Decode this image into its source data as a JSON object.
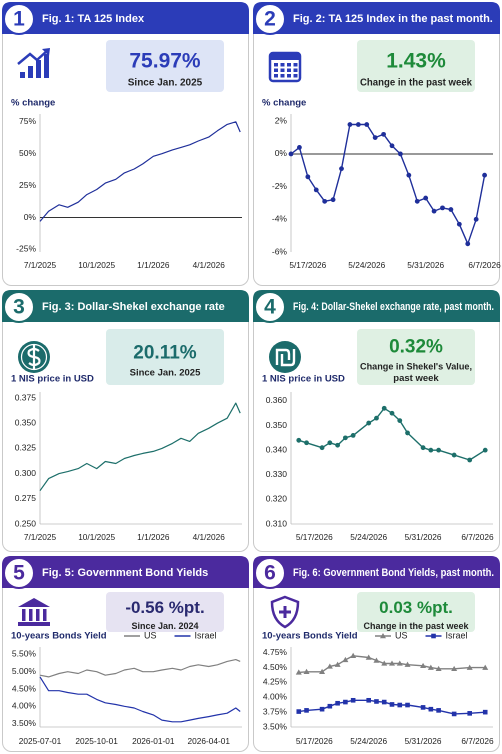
{
  "chart_data": [
    {
      "type": "line",
      "badge": "1",
      "title": "Fig. 1: TA 125 Index",
      "header_color": "#2b3cb8",
      "kpi": "75.97%",
      "kpi_caption": [
        "Since Jan. 2025"
      ],
      "kpi_color": "#2b3cb8",
      "kpi_background": "#dde4f6",
      "ylabel": "% change",
      "zero_line": true,
      "color": "#1f2f9a",
      "x": [
        "7/1/2025",
        "7/15/2025",
        "8/1/2025",
        "8/15/2025",
        "9/1/2025",
        "9/15/2025",
        "10/1/2025",
        "10/15/2025",
        "11/1/2025",
        "11/15/2025",
        "12/1/2025",
        "12/15/2025",
        "1/1/2026",
        "1/15/2026",
        "2/1/2026",
        "2/15/2026",
        "3/1/2026",
        "3/15/2026",
        "4/1/2026",
        "4/15/2026",
        "5/1/2026",
        "5/15/2026",
        "5/22/2026"
      ],
      "values": [
        -3,
        5,
        10,
        8,
        12,
        18,
        22,
        27,
        30,
        35,
        38,
        42,
        48,
        50,
        53,
        55,
        57,
        60,
        63,
        68,
        73,
        75,
        67
      ],
      "xlim": [
        "7/1/2025",
        "5/25/2026"
      ],
      "xticks": [
        "7/1/2025",
        "10/1/2025",
        "1/1/2026",
        "4/1/2026"
      ],
      "ylim": [
        -27,
        78
      ],
      "yticks": [
        {
          "value": -25,
          "label": "-25%"
        },
        {
          "value": 0,
          "label": "0%"
        },
        {
          "value": 25,
          "label": "25%"
        },
        {
          "value": 50,
          "label": "50%"
        },
        {
          "value": 75,
          "label": "75%"
        }
      ]
    },
    {
      "type": "line",
      "badge": "2",
      "title": "Fig. 2: TA 125 Index in the past month.",
      "header_color": "#2b3cb8",
      "kpi": "1.43%",
      "kpi_caption": [
        "Change in the past week"
      ],
      "kpi_color": "#1e8a3a",
      "kpi_background": "#dff0e3",
      "ylabel": "% change",
      "zero_line": true,
      "color": "#1f2f9a",
      "marker": "circle",
      "x": [
        "5/15/2026",
        "5/16/2026",
        "5/17/2026",
        "5/18/2026",
        "5/19/2026",
        "5/20/2026",
        "5/21/2026",
        "5/22/2026",
        "5/23/2026",
        "5/24/2026",
        "5/25/2026",
        "5/26/2026",
        "5/27/2026",
        "5/28/2026",
        "5/29/2026",
        "5/30/2026",
        "5/31/2026",
        "6/1/2026",
        "6/2/2026",
        "6/3/2026",
        "6/4/2026",
        "6/5/2026",
        "6/6/2026",
        "6/7/2026"
      ],
      "values": [
        0.0,
        0.4,
        -1.4,
        -2.2,
        -2.9,
        -2.8,
        -0.9,
        1.8,
        1.8,
        1.8,
        1.0,
        1.2,
        0.5,
        0.0,
        -1.3,
        -2.9,
        -2.7,
        -3.5,
        -3.3,
        -3.4,
        -4.3,
        -5.5,
        -4.0,
        -1.3
      ],
      "xlim": [
        "5/15/2026",
        "6/8/2026"
      ],
      "xticks": [
        "5/17/2026",
        "5/24/2026",
        "5/31/2026",
        "6/7/2026"
      ],
      "ylim": [
        -6,
        2.2
      ],
      "yticks": [
        {
          "value": -6,
          "label": "-6%"
        },
        {
          "value": -4,
          "label": "-4%"
        },
        {
          "value": -2,
          "label": "-2%"
        },
        {
          "value": 0,
          "label": "0%"
        },
        {
          "value": 2,
          "label": "2%"
        }
      ]
    },
    {
      "type": "line",
      "badge": "3",
      "title": "Fig. 3: Dollar-Shekel exchange rate",
      "header_color": "#1b6b6b",
      "kpi": "20.11%",
      "kpi_caption": [
        "Since Jan. 2025"
      ],
      "kpi_color": "#1b6b6b",
      "kpi_background": "#d9ecea",
      "ylabel": "1 NIS price in USD",
      "zero_line": false,
      "color": "#1d6f6a",
      "x": [
        "7/1/2025",
        "7/15/2025",
        "8/1/2025",
        "8/15/2025",
        "9/1/2025",
        "9/15/2025",
        "10/1/2025",
        "10/15/2025",
        "11/1/2025",
        "11/15/2025",
        "12/1/2025",
        "12/15/2025",
        "1/1/2026",
        "1/15/2026",
        "2/1/2026",
        "2/15/2026",
        "3/1/2026",
        "3/15/2026",
        "4/1/2026",
        "4/15/2026",
        "5/1/2026",
        "5/15/2026",
        "5/22/2026"
      ],
      "values": [
        0.283,
        0.295,
        0.3,
        0.302,
        0.305,
        0.31,
        0.305,
        0.312,
        0.31,
        0.315,
        0.318,
        0.32,
        0.322,
        0.325,
        0.33,
        0.335,
        0.332,
        0.34,
        0.345,
        0.35,
        0.355,
        0.37,
        0.36
      ],
      "xlim": [
        "7/1/2025",
        "5/25/2026"
      ],
      "xticks": [
        "7/1/2025",
        "10/1/2025",
        "1/1/2026",
        "4/1/2026"
      ],
      "ylim": [
        0.25,
        0.377
      ],
      "yticks": [
        {
          "value": 0.25,
          "label": "0.250"
        },
        {
          "value": 0.275,
          "label": "0.275"
        },
        {
          "value": 0.3,
          "label": "0.300"
        },
        {
          "value": 0.325,
          "label": "0.325"
        },
        {
          "value": 0.35,
          "label": "0.350"
        },
        {
          "value": 0.375,
          "label": "0.375"
        }
      ]
    },
    {
      "type": "line",
      "badge": "4",
      "title": "Fig. 4: Dollar-Shekel exchange rate, past month.",
      "header_color": "#1b6b6b",
      "kpi": "0.32%",
      "kpi_caption": [
        "Change in Shekel's Value,",
        "past week"
      ],
      "kpi_color": "#1e8a3a",
      "kpi_background": "#dff0e3",
      "ylabel": "1 NIS price in USD",
      "zero_line": false,
      "color": "#1d6f6a",
      "marker": "circle",
      "x": [
        "5/15/2026",
        "5/16/2026",
        "5/18/2026",
        "5/19/2026",
        "5/20/2026",
        "5/21/2026",
        "5/22/2026",
        "5/24/2026",
        "5/25/2026",
        "5/26/2026",
        "5/27/2026",
        "5/28/2026",
        "5/29/2026",
        "5/31/2026",
        "6/1/2026",
        "6/2/2026",
        "6/4/2026",
        "6/6/2026",
        "6/8/2026"
      ],
      "values": [
        0.344,
        0.343,
        0.341,
        0.343,
        0.342,
        0.345,
        0.346,
        0.351,
        0.353,
        0.357,
        0.355,
        0.352,
        0.347,
        0.341,
        0.34,
        0.34,
        0.338,
        0.336,
        0.34
      ],
      "xlim": [
        "5/14/2026",
        "6/9/2026"
      ],
      "xticks": [
        "5/17/2026",
        "5/24/2026",
        "5/31/2026",
        "6/7/2026"
      ],
      "ylim": [
        0.31,
        0.362
      ],
      "yticks": [
        {
          "value": 0.31,
          "label": "0.310"
        },
        {
          "value": 0.32,
          "label": "0.320"
        },
        {
          "value": 0.33,
          "label": "0.330"
        },
        {
          "value": 0.34,
          "label": "0.340"
        },
        {
          "value": 0.35,
          "label": "0.350"
        },
        {
          "value": 0.36,
          "label": "0.360"
        }
      ]
    },
    {
      "type": "line",
      "badge": "5",
      "title": "Fig. 5: Government Bond Yields",
      "header_color": "#4b2a9e",
      "kpi": "-0.56 %pt.",
      "kpi_caption": [
        "Since Jan. 2024"
      ],
      "kpi_color": "#2a2a70",
      "kpi_background": "#e6e3f2",
      "ylabel": "10-years Bonds Yield",
      "zero_line": false,
      "x": [
        "2025-07-01",
        "2025-07-15",
        "2025-08-01",
        "2025-08-15",
        "2025-09-01",
        "2025-09-15",
        "2025-10-01",
        "2025-10-15",
        "2025-11-01",
        "2025-11-15",
        "2025-12-01",
        "2025-12-15",
        "2026-01-01",
        "2026-01-15",
        "2026-02-01",
        "2026-02-15",
        "2026-03-01",
        "2026-03-15",
        "2026-04-01",
        "2026-04-15",
        "2026-05-01",
        "2026-05-15",
        "2026-05-22"
      ],
      "series": [
        {
          "name": "US",
          "color": "#808080",
          "values": [
            4.9,
            4.85,
            4.95,
            5.0,
            4.95,
            5.05,
            5.0,
            4.9,
            4.95,
            5.05,
            5.1,
            5.0,
            5.0,
            5.05,
            5.1,
            5.05,
            5.15,
            5.2,
            5.15,
            5.2,
            5.3,
            5.35,
            5.3
          ]
        },
        {
          "name": "Israel",
          "color": "#2233aa",
          "values": [
            4.85,
            4.45,
            4.45,
            4.4,
            4.35,
            4.35,
            4.2,
            4.1,
            4.05,
            4.0,
            3.95,
            3.85,
            3.75,
            3.6,
            3.55,
            3.55,
            3.6,
            3.65,
            3.7,
            3.75,
            3.8,
            3.95,
            3.85
          ]
        }
      ],
      "xlim": [
        "2025-07-01",
        "2026-05-25"
      ],
      "xticks": [
        "2025-07-01",
        "2025-10-01",
        "2026-01-01",
        "2026-04-01"
      ],
      "ylim": [
        3.4,
        5.6
      ],
      "yticks": [
        {
          "value": 3.5,
          "label": "3.50%"
        },
        {
          "value": 4,
          "label": "4.00%"
        },
        {
          "value": 4.5,
          "label": "4.50%"
        },
        {
          "value": 5,
          "label": "5.00%"
        },
        {
          "value": 5.5,
          "label": "5.50%"
        }
      ]
    },
    {
      "type": "line",
      "badge": "6",
      "title": "Fig. 6: Government Bond Yields, past month.",
      "header_color": "#4b2a9e",
      "kpi": "0.03 %pt.",
      "kpi_caption": [
        "Change in the past week"
      ],
      "kpi_color": "#1e8a3a",
      "kpi_background": "#dff0e3",
      "ylabel": "10-years Bonds Yield",
      "zero_line": false,
      "x": [
        "5/15/2026",
        "5/16/2026",
        "5/18/2026",
        "5/19/2026",
        "5/20/2026",
        "5/21/2026",
        "5/22/2026",
        "5/24/2026",
        "5/25/2026",
        "5/26/2026",
        "5/27/2026",
        "5/28/2026",
        "5/29/2026",
        "5/31/2026",
        "6/1/2026",
        "6/2/2026",
        "6/4/2026",
        "6/6/2026",
        "6/8/2026"
      ],
      "series": [
        {
          "name": "US",
          "color": "#808080",
          "marker": "triangle",
          "values": [
            4.42,
            4.43,
            4.43,
            4.52,
            4.55,
            4.63,
            4.7,
            4.67,
            4.62,
            4.57,
            4.57,
            4.57,
            4.55,
            4.53,
            4.5,
            4.48,
            4.48,
            4.5,
            4.5
          ]
        },
        {
          "name": "Israel",
          "color": "#2233aa",
          "marker": "square",
          "values": [
            3.76,
            3.78,
            3.8,
            3.85,
            3.9,
            3.92,
            3.95,
            3.95,
            3.93,
            3.92,
            3.88,
            3.87,
            3.87,
            3.83,
            3.8,
            3.78,
            3.72,
            3.73,
            3.75
          ]
        }
      ],
      "xlim": [
        "5/14/2026",
        "6/9/2026"
      ],
      "xticks": [
        "5/17/2026",
        "5/24/2026",
        "5/31/2026",
        "6/7/2026"
      ],
      "ylim": [
        3.5,
        4.78
      ],
      "yticks": [
        {
          "value": 3.5,
          "label": "3.50%"
        },
        {
          "value": 3.75,
          "label": "3.75%"
        },
        {
          "value": 4,
          "label": "4.00%"
        },
        {
          "value": 4.25,
          "label": "4.25%"
        },
        {
          "value": 4.5,
          "label": "4.50%"
        },
        {
          "value": 4.75,
          "label": "4.75%"
        }
      ]
    }
  ]
}
